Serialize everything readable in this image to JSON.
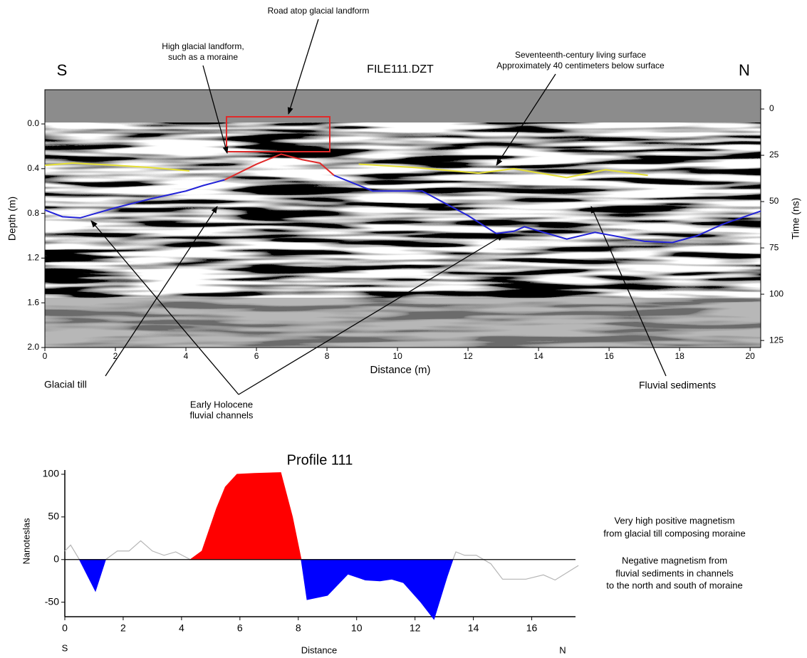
{
  "chart_data": [
    {
      "type": "line",
      "title": "FILE111.DZT",
      "x_label": "Distance (m)",
      "y_label": "Depth (m)",
      "y2_label": "Time (ns)",
      "left_label": "S",
      "right_label": "N",
      "xlim": [
        0,
        20.3
      ],
      "ylim": [
        2.0,
        -0.306
      ],
      "y2lim": [
        128.8,
        -10.4
      ],
      "xticks": [
        0,
        2,
        4,
        6,
        8,
        10,
        12,
        14,
        16,
        18,
        20
      ],
      "yticks": [
        {
          "value": 0,
          "label": "0.0"
        },
        0.4,
        0.8,
        1.2,
        1.6,
        {
          "value": 2,
          "label": "2.0"
        }
      ],
      "y2ticks": [
        0,
        25,
        50,
        75,
        100,
        125
      ],
      "annotations": [
        [
          "Road atop glacial landform"
        ],
        [
          "High glacial landform,",
          "such as a moraine"
        ],
        [
          "Seventeenth-century living surface",
          "Approximately 40 centimeters below surface"
        ],
        [
          "Glacial till"
        ],
        [
          "Early Holocene",
          "fluvial channels"
        ],
        [
          "Fluvial sediments"
        ]
      ],
      "series": [
        {
          "kind": "line",
          "color": "#e6e035",
          "x": [
            0,
            0.8,
            2,
            3,
            4.1,
            null,
            8.9,
            10.5,
            12.3,
            13.3,
            14.8,
            15.9,
            17.1
          ],
          "values": [
            0.37,
            0.35,
            0.37,
            0.39,
            0.42,
            null,
            0.36,
            0.39,
            0.44,
            0.4,
            0.48,
            0.41,
            0.46
          ]
        },
        {
          "kind": "line",
          "color": "#2323d8",
          "x": [
            0,
            0.5,
            1,
            2,
            3,
            4,
            4.5,
            5.1,
            null,
            8.2,
            9.3,
            10.7,
            12,
            12.8,
            13.3,
            13.6,
            14.8,
            15.6,
            17,
            17.8,
            18.5,
            19.2,
            20.3
          ],
          "values": [
            0.77,
            0.83,
            0.84,
            0.75,
            0.67,
            0.6,
            0.55,
            0.5,
            null,
            0.46,
            0.6,
            0.6,
            0.82,
            0.98,
            0.96,
            0.92,
            1.03,
            0.97,
            1.05,
            1.06,
            1.0,
            0.9,
            0.78
          ]
        },
        {
          "kind": "line",
          "color": "#e02a2a",
          "x": [
            5.1,
            6,
            6.7,
            7.3,
            7.8,
            8.2
          ],
          "values": [
            0.5,
            0.36,
            0.27,
            0.32,
            0.35,
            0.46
          ]
        }
      ]
    },
    {
      "type": "area",
      "title": "Profile 111",
      "x_label": "Distance",
      "y_label": "Nanoteslas",
      "left_label": "S",
      "right_label": "N",
      "xlim": [
        0,
        17.5
      ],
      "ylim": [
        -67,
        105
      ],
      "xticks": [
        0,
        2,
        4,
        6,
        8,
        10,
        12,
        14,
        16
      ],
      "yticks": [
        -50,
        0,
        50,
        100
      ],
      "annotations": [
        [
          "Very high positive magnetism",
          "from glacial till composing moraine"
        ],
        [
          "Negative magnetism from",
          "fluvial sediments in channels",
          "to the north and south of moraine"
        ]
      ],
      "series": [
        {
          "kind": "line",
          "color": "#b5b5b5",
          "x": [
            0,
            0.2,
            0.5,
            null,
            1.4,
            1.8,
            2.2,
            2.6,
            3.0,
            3.4,
            3.8,
            4.3,
            null,
            13.3,
            13.4,
            13.7,
            14.1,
            14.6,
            15,
            15.8,
            16.4,
            16.8,
            17.6
          ],
          "values": [
            10,
            17,
            0,
            null,
            0,
            10,
            10,
            22,
            10,
            5,
            9,
            0,
            null,
            0,
            9,
            5,
            5,
            -5,
            -23,
            -23,
            -18,
            -24,
            -7
          ]
        },
        {
          "kind": "area",
          "color": "#ff0000",
          "x": [
            4.3,
            4.7,
            5.2,
            5.5,
            5.9,
            6.5,
            7.4,
            7.8,
            8.1
          ],
          "values": [
            0,
            10,
            60,
            85,
            100,
            101,
            102,
            50,
            0
          ]
        },
        {
          "kind": "area",
          "color": "#0000ff",
          "x": [
            0.5,
            1.05,
            1.4,
            null,
            8.1,
            8.3,
            9,
            9.7,
            10.3,
            10.8,
            11.2,
            11.6,
            12.2,
            12.65,
            13.1,
            13.3
          ],
          "values": [
            0,
            -37,
            0,
            null,
            0,
            -47,
            -42,
            -17,
            -24,
            -25,
            -23,
            -27,
            -50,
            -70,
            -20,
            0
          ]
        }
      ]
    }
  ]
}
